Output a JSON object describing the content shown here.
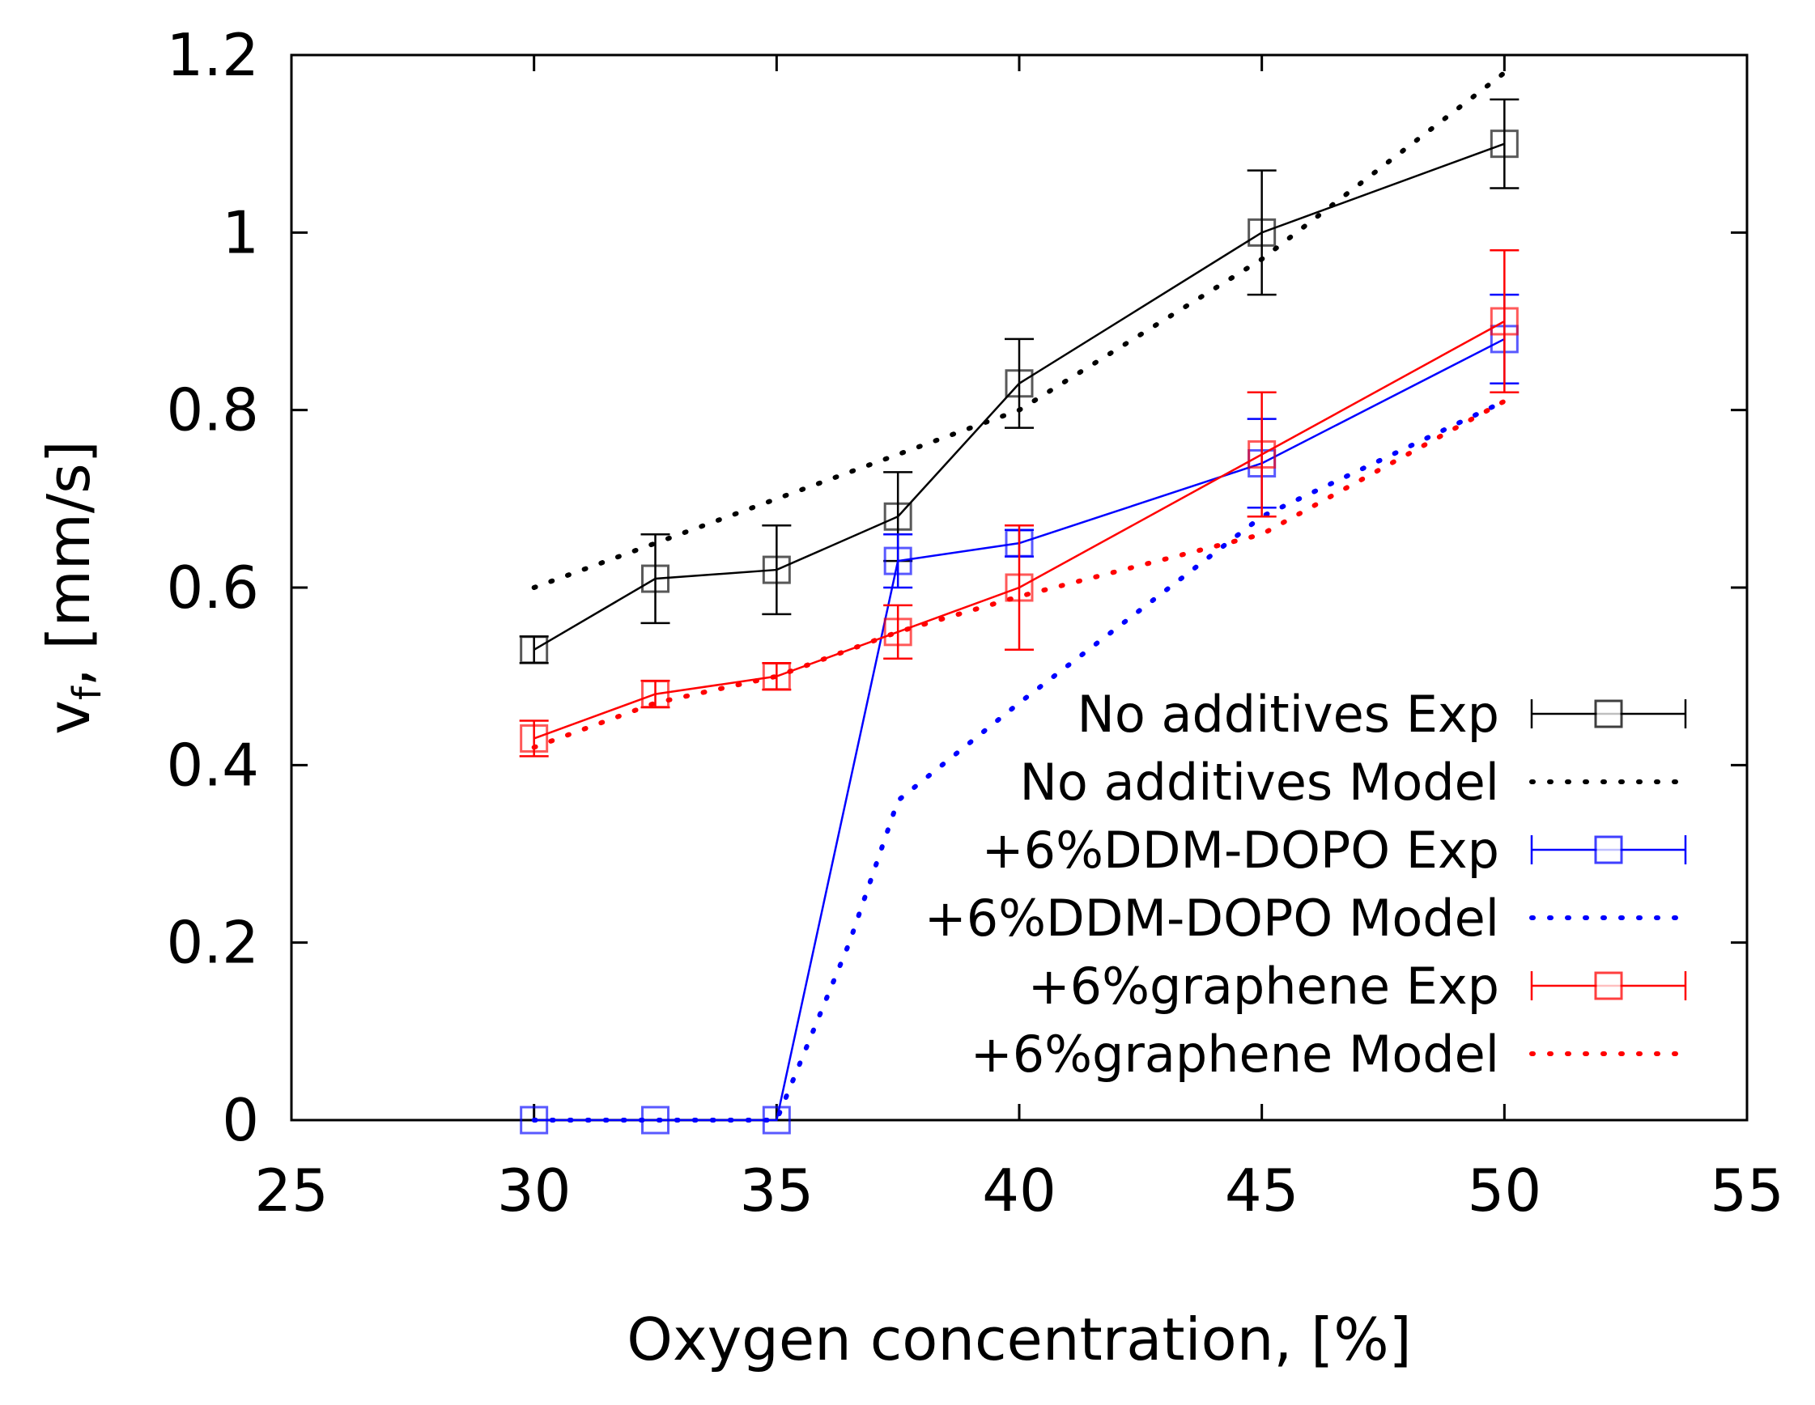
{
  "chart_data": {
    "type": "line",
    "title": "",
    "xlabel": "Oxygen concentration, [%]",
    "ylabel": "v",
    "ylabel_sub": "f",
    "ylabel_rest": ", [mm/s]",
    "xlim": [
      25,
      55
    ],
    "ylim": [
      0,
      1.2
    ],
    "xticks": [
      25,
      30,
      35,
      40,
      45,
      50,
      55
    ],
    "xtick_labels": [
      "25",
      "30",
      "35",
      "40",
      "45",
      "50",
      "55"
    ],
    "yticks": [
      0,
      0.2,
      0.4,
      0.6,
      0.8,
      1.0,
      1.2
    ],
    "ytick_labels": [
      "0",
      "0.2",
      "0.4",
      "0.6",
      "0.8",
      "1",
      "1.2"
    ],
    "grid": false,
    "legend_position": "bottom-right",
    "series": [
      {
        "name": "No additives Exp",
        "style": "solid-marker-errorbar",
        "color": "#000000",
        "x": [
          30,
          32.5,
          35,
          37.5,
          40,
          45,
          50
        ],
        "y": [
          0.53,
          0.61,
          0.62,
          0.68,
          0.83,
          1.0,
          1.1
        ],
        "err": [
          0.015,
          0.05,
          0.05,
          0.05,
          0.05,
          0.07,
          0.05
        ]
      },
      {
        "name": "No additives Model",
        "style": "dotted",
        "color": "#000000",
        "x": [
          30,
          32.5,
          35,
          37.5,
          40,
          45,
          50
        ],
        "y": [
          0.6,
          0.65,
          0.7,
          0.75,
          0.8,
          0.97,
          1.18
        ]
      },
      {
        "name": "+6%DDM-DOPO Exp",
        "style": "solid-marker-errorbar",
        "color": "#0000ff",
        "x": [
          30,
          32.5,
          35,
          37.5,
          40,
          45,
          50
        ],
        "y": [
          0.0,
          0.0,
          0.0,
          0.63,
          0.65,
          0.74,
          0.88
        ],
        "err": [
          0,
          0,
          0,
          0.03,
          0.015,
          0.05,
          0.05
        ]
      },
      {
        "name": "+6%DDM-DOPO Model",
        "style": "dotted",
        "color": "#0000ff",
        "x": [
          30,
          32.5,
          35,
          36.5,
          37.5,
          40,
          45,
          50
        ],
        "y": [
          0.0,
          0.0,
          0.0,
          0.2,
          0.36,
          0.47,
          0.68,
          0.81
        ]
      },
      {
        "name": "+6%graphene Exp",
        "style": "solid-marker-errorbar",
        "color": "#ff0000",
        "x": [
          30,
          32.5,
          35,
          37.5,
          40,
          45,
          50
        ],
        "y": [
          0.43,
          0.48,
          0.5,
          0.55,
          0.6,
          0.75,
          0.9
        ],
        "err": [
          0.02,
          0.015,
          0.015,
          0.03,
          0.07,
          0.07,
          0.08
        ]
      },
      {
        "name": "+6%graphene Model",
        "style": "dotted",
        "color": "#ff0000",
        "x": [
          30,
          32.5,
          35,
          37.5,
          40,
          45,
          50
        ],
        "y": [
          0.42,
          0.47,
          0.5,
          0.55,
          0.59,
          0.66,
          0.81
        ]
      }
    ]
  }
}
